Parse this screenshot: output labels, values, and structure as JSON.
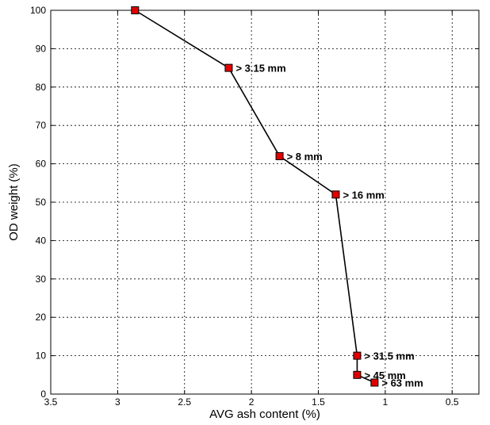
{
  "chart_data": {
    "type": "line",
    "title": "",
    "xlabel": "AVG ash content (%)",
    "ylabel": "OD weight (%)",
    "xlim": [
      3.5,
      0.3
    ],
    "ylim": [
      0,
      100
    ],
    "x_reversed": true,
    "grid": true,
    "x_ticks": [
      3.5,
      3,
      2.5,
      2,
      1.5,
      1,
      0.5
    ],
    "x_tick_labels": [
      "3.5",
      "3",
      "2.5",
      "2",
      "1.5",
      "1",
      "0.5"
    ],
    "y_ticks": [
      0,
      10,
      20,
      30,
      40,
      50,
      60,
      70,
      80,
      90,
      100
    ],
    "y_tick_labels": [
      "0",
      "10",
      "20",
      "30",
      "40",
      "50",
      "60",
      "70",
      "80",
      "90",
      "100"
    ],
    "series": [
      {
        "x": [
          2.87,
          2.17,
          1.79,
          1.37,
          1.21,
          1.21,
          1.08
        ],
        "y": [
          100,
          85,
          62,
          52,
          10,
          5,
          3
        ],
        "labels": [
          "",
          "> 3.15 mm",
          "> 8 mm",
          "> 16 mm",
          "> 31.5 mm",
          "> 45 mm",
          "> 63 mm"
        ],
        "line_color": "#000000",
        "marker_color": "#e00000",
        "marker": "square"
      }
    ]
  }
}
